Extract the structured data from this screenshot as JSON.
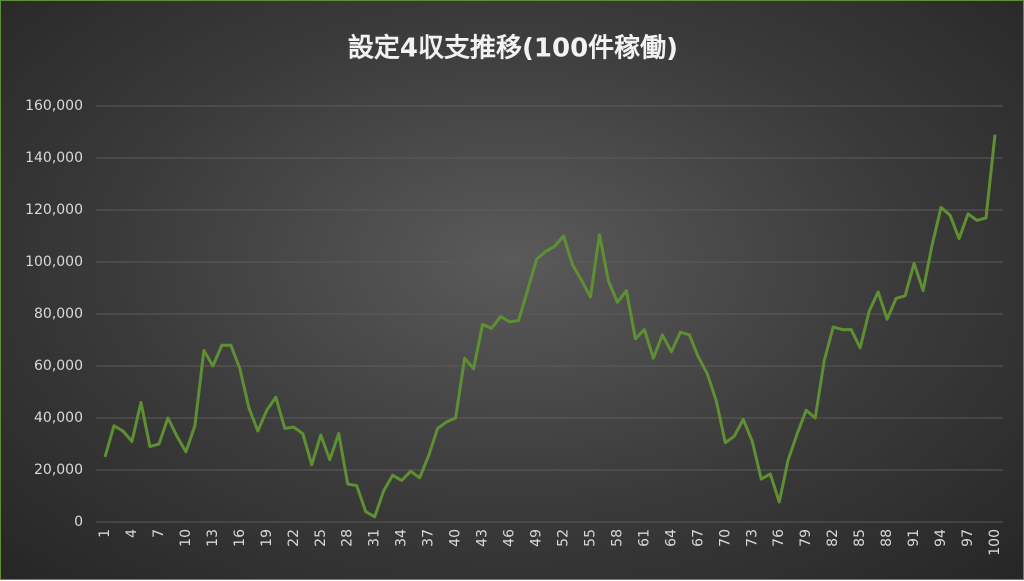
{
  "chart_data": {
    "type": "line",
    "title": "設定4収支推移(100件稼働)",
    "categories": [
      "1",
      null,
      null,
      "4",
      null,
      null,
      "7",
      null,
      null,
      "10",
      null,
      null,
      "13",
      null,
      null,
      "16",
      null,
      null,
      "19",
      null,
      null,
      "22",
      null,
      null,
      "25",
      null,
      null,
      "28",
      null,
      null,
      "31",
      null,
      null,
      "34",
      null,
      null,
      "37",
      null,
      null,
      "40",
      null,
      null,
      "43",
      null,
      null,
      "46",
      null,
      null,
      "49",
      null,
      null,
      "52",
      null,
      null,
      "55",
      null,
      null,
      "58",
      null,
      null,
      "61",
      null,
      null,
      "64",
      null,
      null,
      "67",
      null,
      null,
      "70",
      null,
      null,
      "73",
      null,
      null,
      "76",
      null,
      null,
      "79",
      null,
      null,
      "82",
      null,
      null,
      "85",
      null,
      null,
      "88",
      null,
      null,
      "91",
      null,
      null,
      "94",
      null,
      null,
      "97",
      null,
      null,
      "100"
    ],
    "series": [
      {
        "color": "#5e8f33",
        "values": [
          25000,
          37000,
          35000,
          31000,
          46000,
          29000,
          30000,
          40000,
          33000,
          27000,
          37000,
          66000,
          60000,
          68000,
          68000,
          59000,
          44000,
          35000,
          43000,
          48000,
          36000,
          36500,
          34000,
          22000,
          33500,
          24000,
          34000,
          14600,
          14000,
          4000,
          2000,
          12000,
          18000,
          16000,
          19500,
          17000,
          25500,
          36000,
          38500,
          40000,
          63000,
          59000,
          76000,
          74500,
          79000,
          77000,
          77500,
          89000,
          101000,
          104000,
          106000,
          110000,
          99000,
          93000,
          86500,
          110500,
          92700,
          84500,
          89000,
          70500,
          74000,
          63000,
          72000,
          65500,
          73000,
          72000,
          63500,
          57000,
          46500,
          30500,
          33000,
          39500,
          31000,
          16500,
          18500,
          7700,
          24000,
          34000,
          43000,
          40000,
          62000,
          75000,
          74000,
          74000,
          67000,
          81000,
          88500,
          78000,
          86000,
          87000,
          99500,
          89000,
          106500,
          121000,
          118000,
          109000,
          118500,
          116000,
          117000,
          149000
        ]
      }
    ],
    "ylim": [
      0,
      160000
    ],
    "yticks": [
      0,
      {
        "value": 20000,
        "label": "20,000"
      },
      {
        "value": 40000,
        "label": "40,000"
      },
      {
        "value": 60000,
        "label": "60,000"
      },
      {
        "value": 80000,
        "label": "80,000"
      },
      {
        "value": 100000,
        "label": "100,000"
      },
      {
        "value": 120000,
        "label": "120,000"
      },
      {
        "value": 140000,
        "label": "140,000"
      },
      {
        "value": 160000,
        "label": "160,000"
      }
    ],
    "grid": true
  }
}
